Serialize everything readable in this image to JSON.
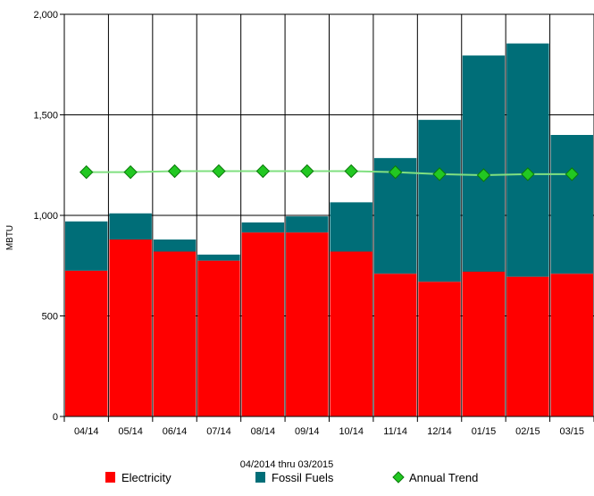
{
  "chart_data": {
    "type": "bar",
    "stacked": true,
    "title": "",
    "xlabel": "04/2014 thru 03/2015",
    "ylabel": "MBTU",
    "ylim": [
      0,
      2000
    ],
    "yticks": [
      0,
      500,
      1000,
      1500,
      2000
    ],
    "ytick_labels": [
      "0",
      "500",
      "1,000",
      "1,500",
      "2,000"
    ],
    "grid": true,
    "legend_placement": "bottom",
    "categories": [
      "04/14",
      "05/14",
      "06/14",
      "07/14",
      "08/14",
      "09/14",
      "10/14",
      "11/14",
      "12/14",
      "01/15",
      "02/15",
      "03/15"
    ],
    "series": [
      {
        "name": "Electricity",
        "kind": "bar",
        "color": "#ff0000",
        "values": [
          725,
          880,
          820,
          775,
          915,
          915,
          820,
          710,
          670,
          720,
          695,
          710
        ]
      },
      {
        "name": "Fossil Fuels",
        "kind": "bar",
        "color": "#006e78",
        "values": [
          245,
          130,
          60,
          30,
          50,
          80,
          245,
          575,
          805,
          1075,
          1160,
          690
        ]
      },
      {
        "name": "Annual Trend",
        "kind": "line",
        "color": "#22c822",
        "line_color": "#80e080",
        "values": [
          1215,
          1215,
          1220,
          1220,
          1220,
          1220,
          1220,
          1215,
          1205,
          1200,
          1205,
          1205
        ]
      }
    ]
  }
}
